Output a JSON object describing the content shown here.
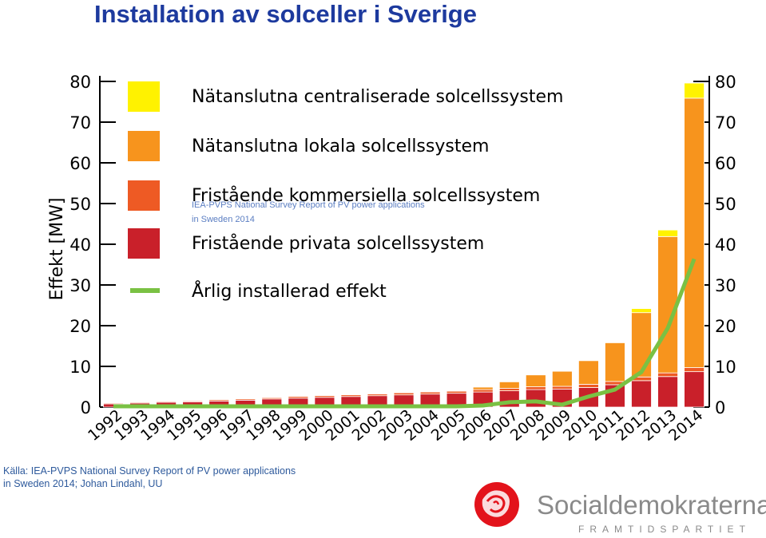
{
  "page": {
    "title": "Installation av solceller i Sverige",
    "source_line1": "Källa: IEA-PVPS National Survey Report of PV power applications",
    "source_line2": "in Sweden 2014; Johan Lindahl, UU",
    "overlay_note_line1": "IEA-PVPS National Survey Report of PV power applications",
    "overlay_note_line2": "in Sweden 2014",
    "logo_text": "Socialdemokraterna",
    "logo_subtext": "FRAMTIDSPARTIET",
    "logo_icon": "rose-logo-icon"
  },
  "chart_data": {
    "type": "bar",
    "stacked": true,
    "ylabel": "Effekt [MW]",
    "ylim": [
      0,
      80
    ],
    "yticks": [
      0,
      10,
      20,
      30,
      40,
      50,
      60,
      70,
      80
    ],
    "grid": false,
    "legend_position": "top-left",
    "categories": [
      "1992",
      "1993",
      "1994",
      "1995",
      "1996",
      "1997",
      "1998",
      "1999",
      "2000",
      "2001",
      "2002",
      "2003",
      "2004",
      "2005",
      "2006",
      "2007",
      "2008",
      "2009",
      "2010",
      "2011",
      "2012",
      "2013",
      "2014"
    ],
    "series": [
      {
        "name": "Fristående privata solcellssystem",
        "color": "#c9202a",
        "values": [
          0.8,
          1.0,
          1.2,
          1.3,
          1.5,
          1.7,
          2.0,
          2.2,
          2.4,
          2.6,
          2.8,
          3.0,
          3.2,
          3.4,
          3.7,
          4.0,
          4.3,
          4.4,
          4.8,
          5.5,
          6.5,
          7.5,
          8.7
        ]
      },
      {
        "name": "Fristående kommersiella solcellssystem",
        "color": "#ee5a24",
        "values": [
          0.2,
          0.2,
          0.2,
          0.2,
          0.3,
          0.3,
          0.3,
          0.4,
          0.4,
          0.4,
          0.4,
          0.5,
          0.5,
          0.5,
          0.6,
          0.6,
          0.7,
          0.7,
          0.8,
          0.8,
          0.9,
          0.9,
          1.0
        ]
      },
      {
        "name": "Nätanslutna lokala solcellssystem",
        "color": "#f7941d",
        "values": [
          0,
          0,
          0,
          0,
          0,
          0,
          0,
          0,
          0,
          0,
          0,
          0,
          0,
          0,
          0.6,
          1.6,
          2.9,
          3.7,
          5.8,
          9.5,
          15.8,
          33.5,
          66.2
        ]
      },
      {
        "name": "Nätanslutna centraliserade solcellssystem",
        "color": "#fff200",
        "values": [
          0,
          0,
          0,
          0,
          0,
          0,
          0,
          0,
          0,
          0,
          0,
          0,
          0,
          0,
          0,
          0,
          0,
          0,
          0,
          0,
          1.0,
          1.6,
          3.7
        ]
      }
    ],
    "line_series": {
      "name": "Årlig installerad effekt",
      "color": "#7ac143",
      "values": [
        0.2,
        0.2,
        0.2,
        0.2,
        0.2,
        0.2,
        0.2,
        0.2,
        0.2,
        0.2,
        0.2,
        0.2,
        0.2,
        0.2,
        0.4,
        1.2,
        1.4,
        0.6,
        2.6,
        4.3,
        8.6,
        19.4,
        36.4
      ]
    }
  }
}
